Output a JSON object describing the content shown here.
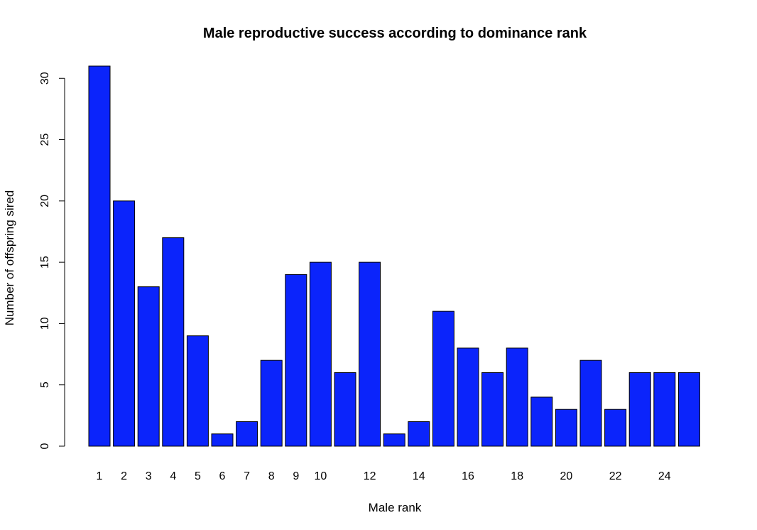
{
  "chart_data": {
    "type": "bar",
    "title": "Male reproductive success according to dominance rank",
    "xlabel": "Male rank",
    "ylabel": "Number of offspring sired",
    "categories": [
      "1",
      "2",
      "3",
      "4",
      "5",
      "6",
      "7",
      "8",
      "9",
      "10",
      "11",
      "12",
      "13",
      "14",
      "15",
      "16",
      "17",
      "18",
      "19",
      "20",
      "21",
      "22",
      "23",
      "24",
      "25"
    ],
    "shown_x_tick_labels": [
      "1",
      "2",
      "3",
      "4",
      "5",
      "6",
      "7",
      "8",
      "9",
      "10",
      "12",
      "14",
      "16",
      "18",
      "20",
      "22",
      "24"
    ],
    "values": [
      31,
      20,
      13,
      17,
      9,
      1,
      2,
      7,
      14,
      15,
      6,
      15,
      1,
      2,
      11,
      8,
      6,
      8,
      4,
      3,
      7,
      3,
      6,
      6,
      6
    ],
    "ylim": [
      0,
      31
    ],
    "yticks": [
      0,
      5,
      10,
      15,
      20,
      25,
      30
    ],
    "bar_color": "#0b24fb",
    "grid": false,
    "legend": "none"
  }
}
